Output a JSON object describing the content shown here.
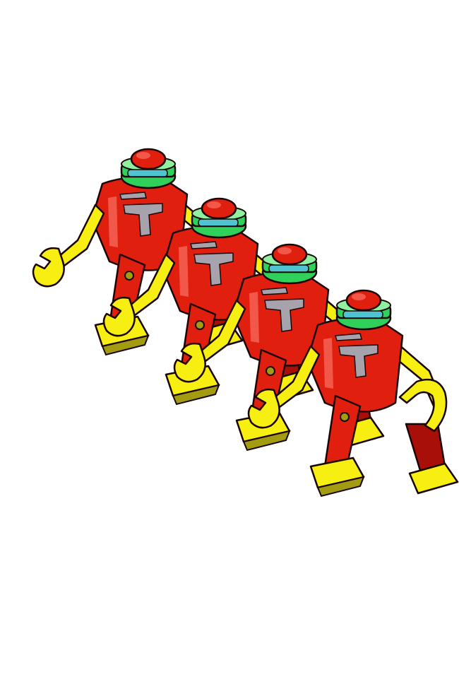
{
  "scene": {
    "subject": "four-red-robot-minifigures-marching",
    "robot_count": 4,
    "colors": {
      "background": "#ffffff",
      "body_red": "#e01f0f",
      "body_red_dark": "#a80f08",
      "body_red_light": "#f2584a",
      "limb_yellow": "#f7ef12",
      "limb_yellow_dark": "#a39c10",
      "neck_green": "#2fd15a",
      "neck_green_light": "#8ff09f",
      "visor_cyan": "#4fc3cf",
      "chest_gray": "#a7a3ad",
      "outline": "#1a0505"
    },
    "robots": [
      {
        "position_in_line": 1,
        "hand_left": "wrench-hand",
        "hand_right": "wrench-hand"
      },
      {
        "position_in_line": 2,
        "hand_left": "wrench-hand",
        "hand_right": "wrench-hand"
      },
      {
        "position_in_line": 3,
        "hand_left": "wrench-hand",
        "hand_right": "wrench-hand"
      },
      {
        "position_in_line": 4,
        "hand_left": "wrench-hand",
        "hand_right": "claw-hand"
      }
    ]
  }
}
